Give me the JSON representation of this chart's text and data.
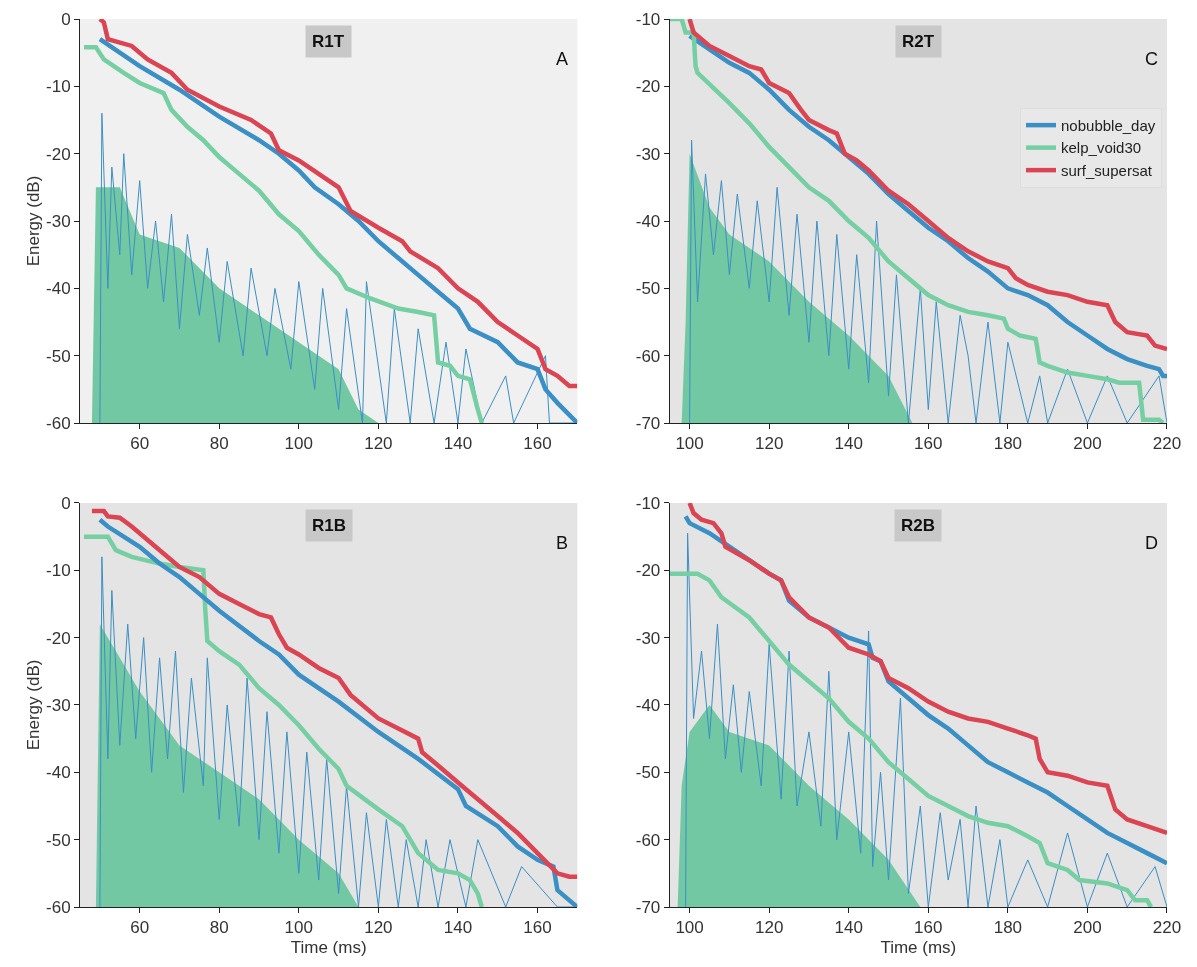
{
  "chart_data": [
    {
      "type": "line",
      "title": "R1T",
      "annotations": [
        "A"
      ],
      "ylabel": "Energy (dB)",
      "xlim": [
        45,
        170
      ],
      "xticks": [
        60,
        80,
        100,
        120,
        140,
        160
      ],
      "ylim": [
        -60,
        0
      ],
      "yticks": [
        -60,
        -50,
        -40,
        -30,
        -20,
        -10,
        0
      ],
      "grid": false,
      "legend": false,
      "series": [
        {
          "type": "area",
          "color": "#73c8a4",
          "x": [
            45,
            48,
            49,
            50,
            55,
            60,
            70,
            80,
            90,
            100,
            110,
            115,
            120
          ],
          "values": [
            -60,
            -60,
            -25,
            -25,
            -25,
            -32,
            -34,
            -40,
            -44,
            -48,
            -52,
            -58,
            -60
          ]
        },
        {
          "type": "line",
          "color": "#3a8fc4",
          "x": [
            50,
            50.5,
            52,
            53,
            55,
            56,
            58,
            60,
            62,
            64,
            66,
            68,
            70,
            72,
            75,
            77,
            80,
            82,
            86,
            88,
            92,
            94,
            98,
            100,
            104,
            106,
            110,
            112,
            116,
            117,
            122,
            124,
            128,
            130,
            134,
            137,
            140,
            142,
            146,
            152,
            154,
            162,
            163,
            170
          ],
          "values": [
            -60,
            -14,
            -40,
            -22,
            -35,
            -20,
            -38,
            -24,
            -40,
            -30,
            -42,
            -29,
            -46,
            -32,
            -44,
            -34,
            -48,
            -36,
            -50,
            -37,
            -50,
            -40,
            -52,
            -39,
            -55,
            -40,
            -58,
            -43,
            -60,
            -39,
            -60,
            -43,
            -60,
            -46,
            -60,
            -48,
            -60,
            -49,
            -60,
            -53,
            -60,
            -50,
            -60,
            -60
          ]
        },
        {
          "type": "line",
          "color": "#76cfa3",
          "x": [
            46,
            49,
            51,
            56,
            60,
            66,
            68,
            72,
            76,
            80,
            85,
            90,
            95,
            100,
            105,
            110,
            112,
            118,
            125,
            130,
            134,
            135,
            138,
            140,
            143,
            145,
            146
          ],
          "values": [
            -4.2,
            -4.2,
            -6,
            -8,
            -9.5,
            -11,
            -13.5,
            -16,
            -18,
            -20.5,
            -23,
            -25.5,
            -29,
            -31.5,
            -35,
            -38,
            -40,
            -41.5,
            -43,
            -43.5,
            -44,
            -51,
            -51.5,
            -53,
            -53.5,
            -58,
            -60
          ]
        },
        {
          "type": "line",
          "color": "#3a8fc4",
          "x": [
            50,
            55,
            60,
            70,
            80,
            90,
            95,
            100,
            104,
            110,
            115,
            120,
            125,
            130,
            135,
            140,
            143,
            150,
            155,
            160,
            162,
            165,
            170
          ],
          "values": [
            -3,
            -5,
            -7,
            -10.5,
            -14.5,
            -18,
            -20,
            -22.5,
            -25,
            -27.5,
            -30,
            -33,
            -35.5,
            -38,
            -40.5,
            -43,
            -46,
            -48,
            -51,
            -52,
            -55,
            -57,
            -60
          ]
        },
        {
          "type": "line",
          "color": "#db4452",
          "x": [
            50,
            51,
            52,
            58,
            62,
            68,
            72,
            80,
            88,
            93,
            95,
            100,
            110,
            113,
            120,
            126,
            128,
            135,
            140,
            145,
            150,
            155,
            160,
            162,
            165,
            168,
            170
          ],
          "values": [
            0,
            -0.5,
            -3,
            -4,
            -6,
            -8,
            -10.5,
            -13,
            -15,
            -17,
            -19.5,
            -21,
            -25,
            -28.5,
            -31,
            -33,
            -34.5,
            -37,
            -40,
            -42,
            -45,
            -47,
            -49,
            -52,
            -53,
            -54.5,
            -54.5
          ]
        }
      ]
    },
    {
      "type": "line",
      "title": "R2T",
      "annotations": [
        "C"
      ],
      "xlim": [
        95,
        220
      ],
      "xticks": [
        100,
        120,
        140,
        160,
        180,
        200,
        220
      ],
      "ylim": [
        -70,
        -10
      ],
      "yticks": [
        -70,
        -60,
        -50,
        -40,
        -30,
        -20,
        -10
      ],
      "grid": false,
      "legend": "top right",
      "series": [
        {
          "type": "area",
          "color": "#73c8a4",
          "x": [
            95,
            98,
            99,
            100,
            105,
            110,
            120,
            130,
            140,
            150,
            156
          ],
          "values": [
            -70,
            -70,
            -55,
            -30,
            -38,
            -42,
            -46,
            -52,
            -57,
            -63,
            -70
          ]
        },
        {
          "type": "line",
          "color": "#3a8fc4",
          "x": [
            100,
            100.5,
            102,
            104,
            106,
            108,
            110,
            112,
            115,
            117,
            120,
            122,
            125,
            127,
            130,
            132,
            135,
            137,
            140,
            142,
            145,
            147,
            150,
            152,
            155,
            158,
            160,
            162,
            165,
            168,
            170,
            172,
            175,
            178,
            180,
            185,
            188,
            190,
            195,
            200,
            205,
            210,
            218,
            220
          ],
          "values": [
            -70,
            -28,
            -52,
            -33,
            -45,
            -34,
            -48,
            -36,
            -50,
            -37,
            -52,
            -35,
            -54,
            -39,
            -58,
            -40,
            -60,
            -42,
            -62,
            -45,
            -64,
            -40,
            -66,
            -48,
            -70,
            -50,
            -68,
            -52,
            -70,
            -54,
            -60,
            -70,
            -55,
            -70,
            -58,
            -70,
            -63,
            -70,
            -62,
            -70,
            -63,
            -70,
            -63,
            -70
          ]
        },
        {
          "color": "#3a8fc4",
          "name": "nobubble_day",
          "x": [
            100,
            105,
            110,
            115,
            120,
            125,
            130,
            135,
            140,
            145,
            150,
            155,
            160,
            165,
            170,
            175,
            180,
            185,
            190,
            195,
            200,
            205,
            210,
            215,
            218,
            219,
            220
          ],
          "values": [
            -12.5,
            -14.5,
            -16.5,
            -18,
            -20.5,
            -23.5,
            -26,
            -28,
            -30.5,
            -33,
            -36,
            -38.5,
            -41,
            -43,
            -45.5,
            -47.5,
            -50,
            -51,
            -52.5,
            -55,
            -57,
            -59,
            -60.5,
            -61.5,
            -62,
            -63,
            -63
          ]
        },
        {
          "color": "#76cfa3",
          "name": "kelp_void30",
          "x": [
            95,
            98,
            99,
            101,
            101.5,
            102,
            110,
            115,
            120,
            125,
            130,
            135,
            140,
            145,
            150,
            155,
            160,
            165,
            170,
            175,
            179,
            180,
            183,
            187,
            188,
            190,
            195,
            200,
            205,
            208,
            213,
            214,
            218,
            219
          ],
          "values": [
            -10,
            -10,
            -12,
            -12,
            -17,
            -18,
            -22.5,
            -25.5,
            -29,
            -32,
            -35,
            -37,
            -40,
            -42.5,
            -46,
            -48.5,
            -51,
            -52.5,
            -53.5,
            -54,
            -54.5,
            -56,
            -57,
            -57.5,
            -61,
            -61.5,
            -62.5,
            -63,
            -63.5,
            -64,
            -64,
            -69.5,
            -69.5,
            -70
          ]
        },
        {
          "color": "#db4452",
          "name": "surf_supersat",
          "x": [
            100,
            101,
            105,
            110,
            115,
            118,
            120,
            125,
            128,
            130,
            135,
            137,
            139,
            142,
            145,
            150,
            155,
            160,
            165,
            170,
            175,
            180,
            182,
            185,
            190,
            195,
            200,
            205,
            207,
            210,
            215,
            217,
            220
          ],
          "values": [
            -10,
            -12,
            -14,
            -15.5,
            -17,
            -17.5,
            -19.5,
            -21,
            -23.5,
            -25,
            -26.5,
            -27,
            -30,
            -31,
            -32.5,
            -35.5,
            -37.5,
            -40,
            -42.5,
            -44.5,
            -46,
            -47,
            -48.5,
            -49.5,
            -50.5,
            -51,
            -52,
            -52.5,
            -55,
            -56.5,
            -57,
            -58.5,
            -59
          ]
        }
      ]
    },
    {
      "type": "line",
      "title": "R1B",
      "annotations": [
        "B"
      ],
      "xlabel": "Time (ms)",
      "ylabel": "Energy (dB)",
      "xlim": [
        45,
        170
      ],
      "xticks": [
        60,
        80,
        100,
        120,
        140,
        160
      ],
      "ylim": [
        -60,
        0
      ],
      "yticks": [
        -60,
        -50,
        -40,
        -30,
        -20,
        -10,
        0
      ],
      "grid": false,
      "legend": false,
      "series": [
        {
          "type": "area",
          "color": "#73c8a4",
          "x": [
            45,
            49,
            50,
            55,
            60,
            70,
            80,
            90,
            100,
            110,
            115
          ],
          "values": [
            -60,
            -60,
            -18,
            -23,
            -28,
            -36,
            -40,
            -44,
            -50,
            -55,
            -60
          ]
        },
        {
          "type": "line",
          "color": "#3a8fc4",
          "x": [
            50,
            50.5,
            52,
            53,
            55,
            57,
            59,
            61,
            63,
            65,
            67,
            69,
            71,
            73,
            76,
            77,
            80,
            82,
            85,
            87,
            90,
            92,
            95,
            97,
            100,
            102,
            105,
            107,
            110,
            112,
            115,
            117,
            120,
            122,
            125,
            127,
            130,
            132,
            135,
            138,
            142,
            145,
            152,
            156,
            165,
            170
          ],
          "values": [
            -60,
            -8,
            -38,
            -13,
            -36,
            -18,
            -35,
            -20,
            -40,
            -23,
            -38,
            -22,
            -43,
            -26,
            -42,
            -23,
            -47,
            -30,
            -48,
            -26,
            -50,
            -31,
            -52,
            -34,
            -55,
            -37,
            -56,
            -38,
            -58,
            -42,
            -60,
            -46,
            -60,
            -47,
            -60,
            -50,
            -60,
            -50,
            -60,
            -50,
            -60,
            -50,
            -60,
            -54,
            -60,
            -60
          ]
        },
        {
          "type": "line",
          "color": "#76cfa3",
          "x": [
            46,
            52,
            54,
            58,
            65,
            70,
            76,
            76.5,
            77,
            80,
            85,
            90,
            95,
            100,
            105,
            110,
            112,
            120,
            126,
            130,
            135,
            140,
            143,
            145,
            146
          ],
          "values": [
            -5,
            -5,
            -7,
            -8,
            -9,
            -9.5,
            -10,
            -16,
            -20.5,
            -22,
            -24,
            -27.5,
            -30,
            -33,
            -36.5,
            -39.5,
            -42,
            -45.5,
            -48,
            -52,
            -54.5,
            -55,
            -56,
            -58,
            -60
          ]
        },
        {
          "type": "line",
          "color": "#3a8fc4",
          "x": [
            50,
            52,
            60,
            65,
            70,
            75,
            80,
            90,
            95,
            100,
            110,
            120,
            130,
            140,
            142,
            150,
            155,
            160,
            164,
            165,
            170
          ],
          "values": [
            -2.5,
            -3.5,
            -6.5,
            -9,
            -11,
            -13.5,
            -16,
            -20.5,
            -22.5,
            -25.5,
            -29.5,
            -34,
            -38,
            -42.5,
            -45,
            -48,
            -51,
            -53,
            -54,
            -57.5,
            -60
          ]
        },
        {
          "type": "line",
          "color": "#db4452",
          "x": [
            48,
            51,
            52,
            55,
            58,
            62,
            66,
            70,
            75,
            80,
            85,
            90,
            93,
            95,
            97,
            100,
            105,
            110,
            113,
            120,
            125,
            130,
            131,
            135,
            140,
            145,
            150,
            155,
            160,
            165,
            168,
            170
          ],
          "values": [
            -1.2,
            -1.2,
            -2,
            -2.2,
            -3.5,
            -5.5,
            -7.5,
            -9.5,
            -11,
            -13.5,
            -15,
            -16.5,
            -17,
            -19.5,
            -21.5,
            -22.5,
            -24.5,
            -26,
            -28.5,
            -32,
            -33.5,
            -35,
            -37,
            -39,
            -41.5,
            -44,
            -46.5,
            -49,
            -52,
            -55,
            -55.5,
            -55.5
          ]
        }
      ]
    },
    {
      "type": "line",
      "title": "R2B",
      "annotations": [
        "D"
      ],
      "xlabel": "Time (ms)",
      "xlim": [
        95,
        220
      ],
      "xticks": [
        100,
        120,
        140,
        160,
        180,
        200,
        220
      ],
      "ylim": [
        -70,
        -10
      ],
      "yticks": [
        -70,
        -60,
        -50,
        -40,
        -30,
        -20,
        -10
      ],
      "grid": false,
      "legend": false,
      "series": [
        {
          "type": "area",
          "color": "#73c8a4",
          "x": [
            95,
            97,
            98,
            100,
            105,
            110,
            120,
            130,
            140,
            150,
            158
          ],
          "values": [
            -70,
            -70,
            -52,
            -44,
            -40,
            -44,
            -46,
            -52,
            -57,
            -63,
            -70
          ]
        },
        {
          "type": "line",
          "color": "#3a8fc4",
          "x": [
            99,
            99.5,
            101,
            103,
            105,
            107,
            109,
            111,
            113,
            115,
            118,
            120,
            123,
            125,
            127,
            130,
            133,
            135,
            137,
            140,
            143,
            145,
            146,
            148,
            150,
            153,
            155,
            158,
            160,
            163,
            165,
            168,
            170,
            172,
            175,
            178,
            180,
            185,
            190,
            195,
            200,
            205,
            210,
            217,
            220
          ],
          "values": [
            -70,
            -14.5,
            -42,
            -32,
            -45,
            -28,
            -48,
            -37,
            -50,
            -38,
            -52,
            -31,
            -54,
            -32,
            -55,
            -44,
            -58,
            -35,
            -60,
            -44,
            -62,
            -29,
            -64,
            -50,
            -66,
            -39,
            -68,
            -55,
            -70,
            -56,
            -66,
            -57,
            -70,
            -55,
            -70,
            -60,
            -70,
            -63,
            -70,
            -59,
            -70,
            -62,
            -70,
            -64,
            -70
          ]
        },
        {
          "type": "line",
          "color": "#76cfa3",
          "x": [
            95,
            102,
            105,
            108,
            115,
            120,
            125,
            130,
            135,
            140,
            145,
            150,
            155,
            160,
            165,
            170,
            175,
            180,
            185,
            188,
            190,
            195,
            198,
            205,
            210,
            212,
            215,
            216
          ],
          "values": [
            -20.5,
            -20.5,
            -21.5,
            -24,
            -27,
            -30.5,
            -34,
            -36.5,
            -39,
            -42.5,
            -45,
            -48.5,
            -51,
            -53.5,
            -55,
            -56.5,
            -57.5,
            -58,
            -59.5,
            -60.5,
            -63.5,
            -64.5,
            -66,
            -66.5,
            -67.5,
            -69,
            -69,
            -70
          ]
        },
        {
          "type": "line",
          "color": "#3a8fc4",
          "x": [
            99,
            100,
            105,
            110,
            115,
            120,
            123,
            125,
            130,
            135,
            140,
            145,
            146,
            148,
            150,
            155,
            160,
            165,
            170,
            175,
            180,
            185,
            190,
            195,
            200,
            205,
            210,
            215,
            220
          ],
          "values": [
            -12,
            -13,
            -14.5,
            -16.5,
            -18.5,
            -20.5,
            -21.5,
            -24.5,
            -27,
            -28.5,
            -30,
            -31,
            -33,
            -33.5,
            -36.5,
            -39,
            -41.5,
            -43.5,
            -46,
            -48.5,
            -50,
            -51.5,
            -53,
            -55,
            -57,
            -59,
            -60.5,
            -62,
            -63.5
          ]
        },
        {
          "type": "line",
          "color": "#db4452",
          "x": [
            100,
            101,
            103,
            106,
            108,
            109,
            115,
            120,
            123,
            125,
            130,
            135,
            140,
            145,
            148,
            150,
            155,
            160,
            165,
            170,
            175,
            180,
            185,
            187,
            188,
            190,
            195,
            200,
            205,
            207,
            210,
            215,
            220
          ],
          "values": [
            -10,
            -11.5,
            -12.5,
            -13,
            -14.5,
            -16.5,
            -18.5,
            -20.5,
            -21.5,
            -24,
            -27,
            -28.5,
            -31.5,
            -32.5,
            -33.5,
            -36,
            -37.5,
            -39.5,
            -41,
            -42,
            -42.5,
            -43.5,
            -44.5,
            -45,
            -48,
            -50,
            -50.5,
            -51.5,
            -52,
            -55.5,
            -57,
            -58,
            -59
          ]
        }
      ]
    }
  ]
}
